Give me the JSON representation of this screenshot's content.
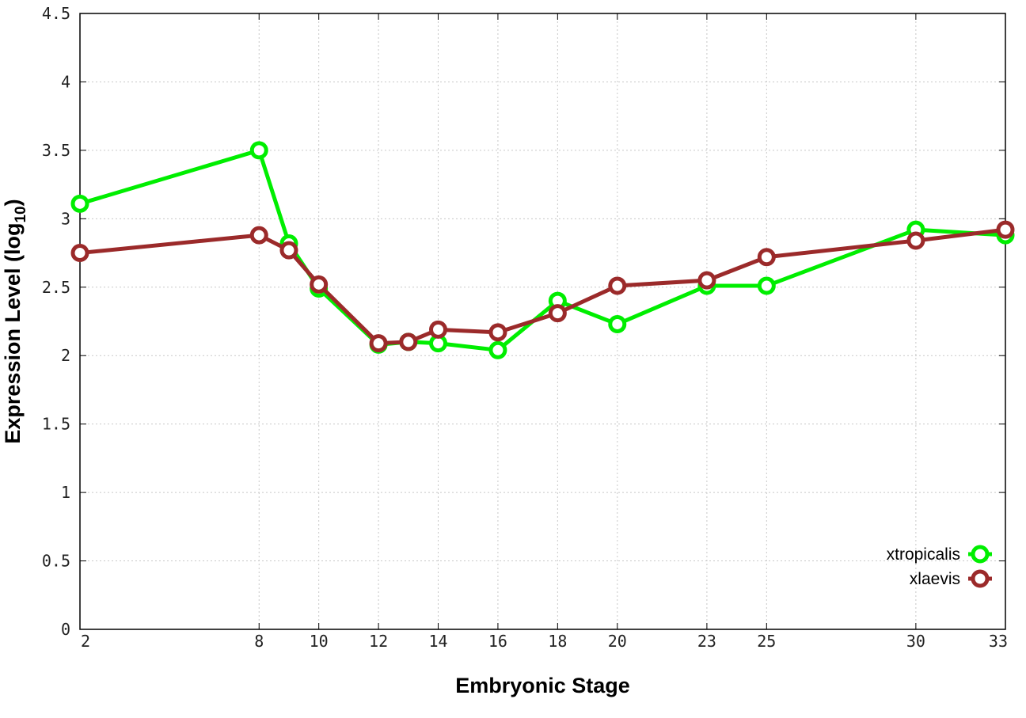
{
  "chart_data": {
    "type": "line",
    "xlabel": "Embryonic Stage",
    "ylabel": "Expression Level (log",
    "ylabel_sub": "10",
    "ylabel_close": ")",
    "xlim": [
      2,
      33
    ],
    "ylim": [
      0,
      4.5
    ],
    "x_ticks": [
      "2",
      "8",
      "10",
      "12",
      "14",
      "16",
      "18",
      "20",
      "23",
      "25",
      "30",
      "33"
    ],
    "y_ticks": [
      "0",
      "0.5",
      "1",
      "1.5",
      "2",
      "2.5",
      "3",
      "3.5",
      "4",
      "4.5"
    ],
    "grid": true,
    "legend_position": "bottom-right",
    "series": [
      {
        "name": "xtropicalis",
        "color": "#00ee00",
        "x": [
          2,
          8,
          9,
          10,
          12,
          13,
          14,
          16,
          18,
          20,
          23,
          25,
          30,
          33
        ],
        "y": [
          3.11,
          3.5,
          2.82,
          2.49,
          2.08,
          2.1,
          2.09,
          2.04,
          2.4,
          2.23,
          2.51,
          2.51,
          2.92,
          2.88
        ]
      },
      {
        "name": "xlaevis",
        "color": "#9b2a2a",
        "x": [
          2,
          8,
          9,
          10,
          12,
          13,
          14,
          16,
          18,
          20,
          23,
          25,
          30,
          33
        ],
        "y": [
          2.75,
          2.88,
          2.77,
          2.52,
          2.09,
          2.1,
          2.19,
          2.17,
          2.31,
          2.51,
          2.55,
          2.72,
          2.84,
          2.92
        ]
      }
    ]
  }
}
